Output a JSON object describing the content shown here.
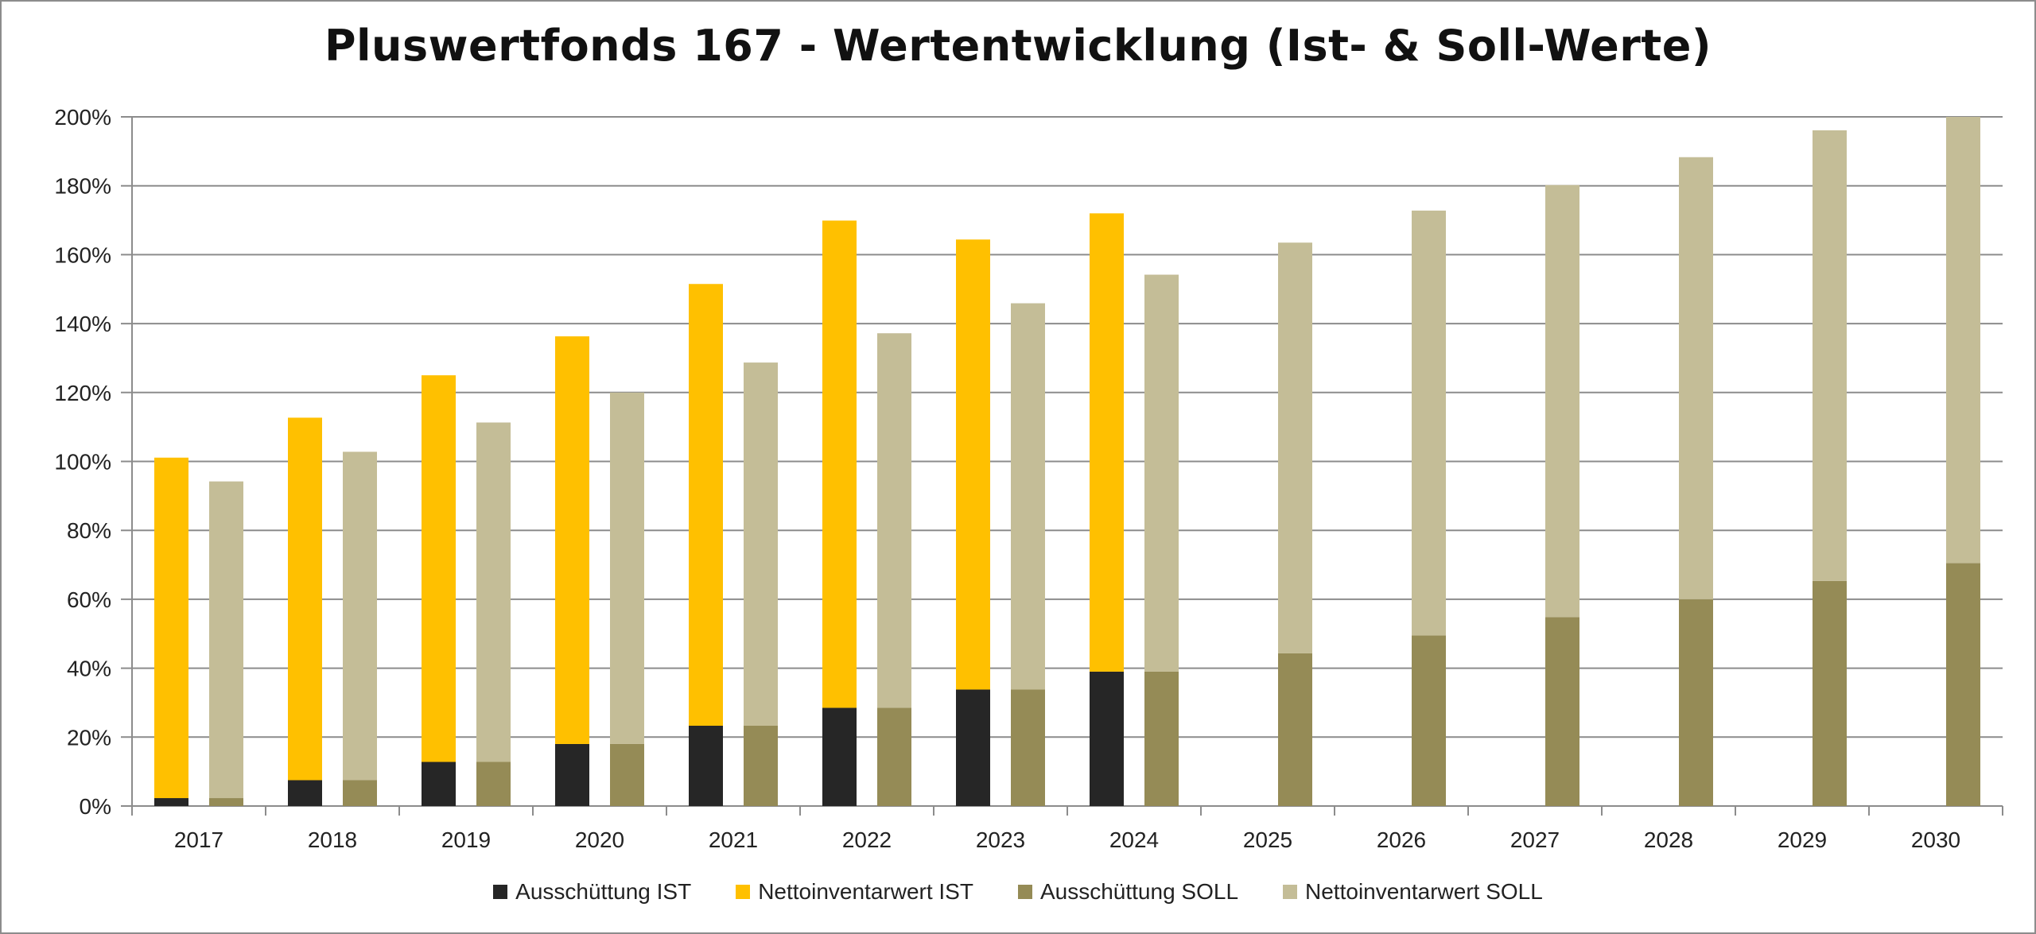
{
  "chart_data": {
    "type": "bar",
    "stacked": true,
    "title": "Pluswertfonds 167 - Wertentwicklung (Ist- & Soll-Werte)",
    "xlabel": "",
    "ylabel": "",
    "categories": [
      "2017",
      "2018",
      "2019",
      "2020",
      "2021",
      "2022",
      "2023",
      "2024",
      "2025",
      "2026",
      "2027",
      "2028",
      "2029",
      "2030"
    ],
    "ylim": [
      0,
      200
    ],
    "yticks": [
      0,
      20,
      40,
      60,
      80,
      100,
      120,
      140,
      160,
      180,
      200
    ],
    "ytick_labels": [
      "0%",
      "20%",
      "40%",
      "60%",
      "80%",
      "100%",
      "120%",
      "140%",
      "160%",
      "180%",
      "200%"
    ],
    "grid": true,
    "legend_position": "bottom",
    "groups": [
      {
        "name": "IST",
        "stack": [
          {
            "name": "Ausschüttung IST",
            "color": "#262626",
            "values": [
              2.3,
              7.5,
              12.8,
              18,
              23.3,
              28.5,
              33.8,
              39,
              null,
              null,
              null,
              null,
              null,
              null
            ]
          },
          {
            "name": "Nettoinventarwert IST",
            "color": "#ffc000",
            "values": [
              98.8,
              105.2,
              112.2,
              118.3,
              128.2,
              141.4,
              130.6,
              133,
              null,
              null,
              null,
              null,
              null,
              null
            ]
          }
        ]
      },
      {
        "name": "SOLL",
        "stack": [
          {
            "name": "Ausschüttung SOLL",
            "color": "#958b56",
            "values": [
              2.3,
              7.5,
              12.8,
              18,
              23.3,
              28.5,
              33.8,
              39,
              44.3,
              49.5,
              54.8,
              60,
              65.3,
              70.5
            ]
          },
          {
            "name": "Nettoinventarwert SOLL",
            "color": "#c4bd97",
            "values": [
              91.9,
              95.3,
              98.5,
              102,
              105.4,
              108.7,
              112.1,
              115.2,
              119.2,
              123.3,
              125.4,
              128.3,
              130.8,
              129.5
            ]
          }
        ]
      }
    ]
  },
  "legend": [
    "Ausschüttung IST",
    "Nettoinventarwert IST",
    "Ausschüttung SOLL",
    "Nettoinventarwert SOLL"
  ],
  "legend_colors": [
    "#262626",
    "#ffc000",
    "#958b56",
    "#c4bd97"
  ]
}
